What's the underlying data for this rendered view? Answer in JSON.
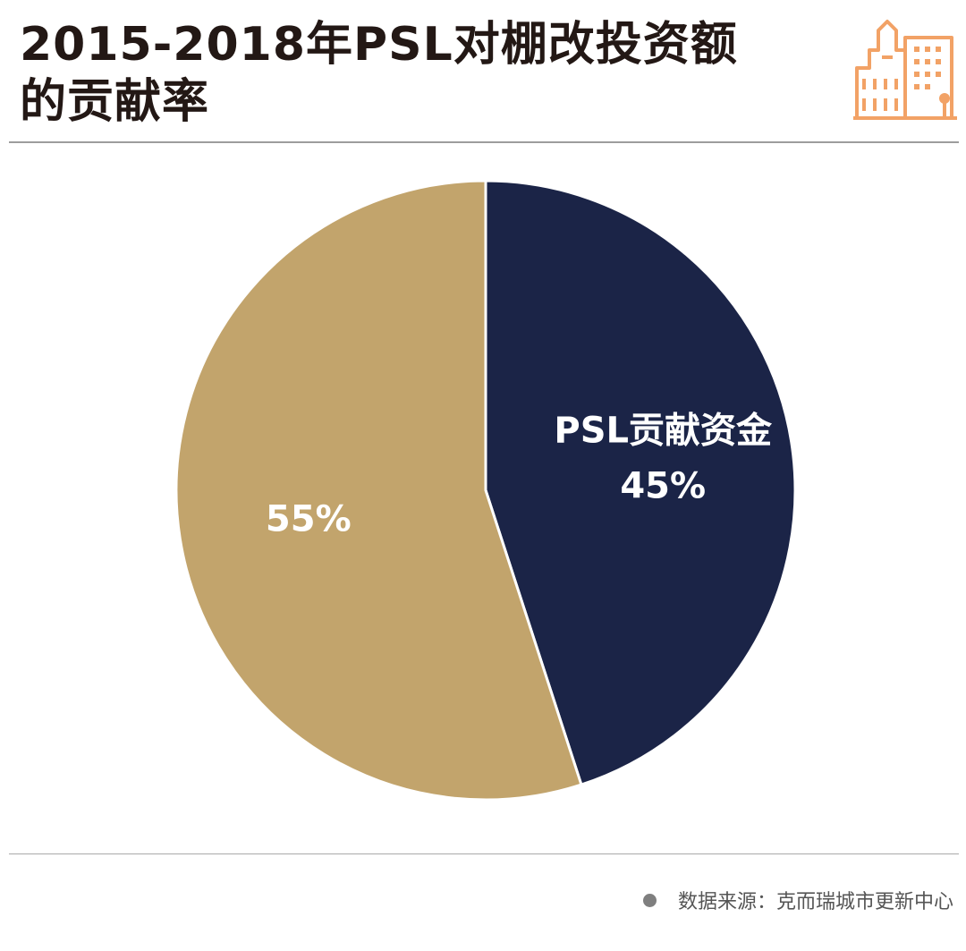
{
  "header": {
    "title_line1": "2015-2018年PSL对棚改投资额",
    "title_line2": "的贡献率",
    "logo_icon": "city-buildings-icon",
    "logo_color": "#f2a266"
  },
  "chart_data": {
    "type": "pie",
    "title": "2015-2018年PSL对棚改投资额的贡献率",
    "slices": [
      {
        "name": "PSL贡献资金",
        "value": 45,
        "label": "45%",
        "color": "#1b2447"
      },
      {
        "name": "",
        "value": 55,
        "label": "55%",
        "color": "#c2a46c"
      }
    ],
    "start": "12 o'clock",
    "direction": "clockwise",
    "legend": "none"
  },
  "footer": {
    "source_text": "数据来源：克而瑞城市更新中心",
    "bullet_color": "#7f7f7f"
  }
}
